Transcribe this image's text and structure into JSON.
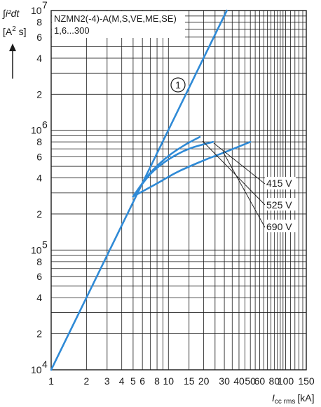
{
  "chart_data": {
    "type": "line",
    "title_line1": "NZMN2(-4)-A(M,S,VE,ME,SE)",
    "title_line2": "1,6...300",
    "ylabel_line1": "∫i²dt",
    "ylabel_unit_open": "[A",
    "ylabel_unit_exp": "2",
    "ylabel_unit_close": " s]",
    "xlabel_main": "I",
    "xlabel_sub": "cc rms",
    "xlabel_unit": "[kA]",
    "x_scale": "log",
    "y_scale": "log",
    "xlim": [
      1,
      150
    ],
    "ylim": [
      10000,
      10000000
    ],
    "grid": true,
    "x_ticks": [
      {
        "v": 1,
        "t": "1"
      },
      {
        "v": 2,
        "t": "2"
      },
      {
        "v": 3,
        "t": "3"
      },
      {
        "v": 4,
        "t": "4"
      },
      {
        "v": 5,
        "t": "5"
      },
      {
        "v": 6,
        "t": "6"
      },
      {
        "v": 8,
        "t": "8"
      },
      {
        "v": 10,
        "t": "10"
      },
      {
        "v": 15,
        "t": "15"
      },
      {
        "v": 20,
        "t": "20"
      },
      {
        "v": 30,
        "t": "30"
      },
      {
        "v": 40,
        "t": "40"
      },
      {
        "v": 50,
        "t": "50"
      },
      {
        "v": 60,
        "t": "60"
      },
      {
        "v": 80,
        "t": "80"
      },
      {
        "v": 100,
        "t": "100"
      },
      {
        "v": 150,
        "t": "150"
      }
    ],
    "x_grid": [
      1,
      2,
      3,
      4,
      5,
      6,
      7,
      8,
      9,
      10,
      15,
      20,
      25,
      30,
      35,
      40,
      45,
      50,
      55,
      60,
      65,
      70,
      75,
      80,
      85,
      90,
      95,
      100,
      110,
      120,
      130,
      140,
      150
    ],
    "y_ticks": [
      {
        "v": 10000,
        "t": "10",
        "exp": "4"
      },
      {
        "v": 20000,
        "t": "2"
      },
      {
        "v": 40000,
        "t": "4"
      },
      {
        "v": 60000,
        "t": "6"
      },
      {
        "v": 80000,
        "t": "8"
      },
      {
        "v": 100000,
        "t": "10",
        "exp": "5"
      },
      {
        "v": 200000,
        "t": "2"
      },
      {
        "v": 400000,
        "t": "4"
      },
      {
        "v": 600000,
        "t": "6"
      },
      {
        "v": 800000,
        "t": "8"
      },
      {
        "v": 1000000,
        "t": "10",
        "exp": "6"
      },
      {
        "v": 2000000,
        "t": "2"
      },
      {
        "v": 4000000,
        "t": "4"
      },
      {
        "v": 6000000,
        "t": "6"
      },
      {
        "v": 8000000,
        "t": "8"
      },
      {
        "v": 10000000,
        "t": "10",
        "exp": "7"
      }
    ],
    "y_grid": [
      10000,
      20000,
      30000,
      40000,
      50000,
      60000,
      70000,
      80000,
      90000,
      100000,
      200000,
      300000,
      400000,
      500000,
      600000,
      700000,
      800000,
      900000,
      1000000,
      2000000,
      3000000,
      4000000,
      5000000,
      6000000,
      7000000,
      8000000,
      9000000,
      10000000
    ],
    "series": [
      {
        "name": "1",
        "color": "#2f8ad6",
        "points": [
          [
            1,
            10000
          ],
          [
            31.5,
            10000000
          ]
        ]
      },
      {
        "name": "415 V",
        "color": "#2f8ad6",
        "points": [
          [
            5,
            280000
          ],
          [
            7,
            430000
          ],
          [
            10,
            570000
          ],
          [
            15,
            700000
          ],
          [
            24,
            800000
          ]
        ]
      },
      {
        "name": "525 V",
        "color": "#2f8ad6",
        "points": [
          [
            5,
            280000
          ],
          [
            7,
            440000
          ],
          [
            10,
            610000
          ],
          [
            14,
            760000
          ],
          [
            18.5,
            880000
          ]
        ]
      },
      {
        "name": "690 V",
        "color": "#2f8ad6",
        "points": [
          [
            5,
            280000
          ],
          [
            8,
            360000
          ],
          [
            12,
            450000
          ],
          [
            20,
            560000
          ],
          [
            32,
            670000
          ],
          [
            50,
            800000
          ]
        ]
      }
    ],
    "marker_label": "1",
    "voltage_labels": [
      "415 V",
      "525 V",
      "690 V"
    ]
  }
}
